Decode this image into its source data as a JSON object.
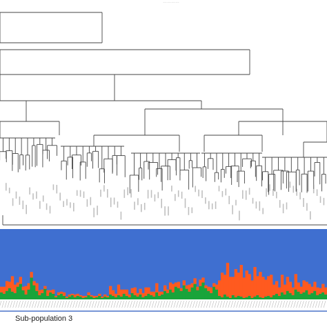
{
  "figure": {
    "top_title": "…………",
    "bottom_label": "Sub-population 3",
    "colors": {
      "background": "#ffffff",
      "tree_line": "#444444",
      "bar_background": "#3f6fd0",
      "series_orange": "#ff5a1f",
      "series_green": "#19a43a",
      "sample_labels": "#8a8a8a",
      "underline": "#4a72c9"
    }
  },
  "chart_data": {
    "type": "bar",
    "stacked": true,
    "ylim": [
      0,
      1
    ],
    "n_samples": 120,
    "series": [
      {
        "color": "#19a43a",
        "values": [
          0.1,
          0.08,
          0.12,
          0.16,
          0.11,
          0.09,
          0.18,
          0.22,
          0.13,
          0.07,
          0.14,
          0.31,
          0.2,
          0.12,
          0.06,
          0.09,
          0.15,
          0.05,
          0.1,
          0.08,
          0.03,
          0.06,
          0.08,
          0.05,
          0.02,
          0.04,
          0.06,
          0.03,
          0.05,
          0.04,
          0.02,
          0.03,
          0.06,
          0.04,
          0.02,
          0.03,
          0.05,
          0.02,
          0.04,
          0.03,
          0.07,
          0.05,
          0.03,
          0.06,
          0.04,
          0.08,
          0.05,
          0.03,
          0.09,
          0.06,
          0.04,
          0.07,
          0.03,
          0.05,
          0.08,
          0.06,
          0.04,
          0.1,
          0.05,
          0.07,
          0.12,
          0.09,
          0.14,
          0.1,
          0.18,
          0.16,
          0.12,
          0.2,
          0.15,
          0.11,
          0.17,
          0.22,
          0.13,
          0.19,
          0.24,
          0.16,
          0.12,
          0.09,
          0.18,
          0.14,
          0.05,
          0.03,
          0.07,
          0.04,
          0.02,
          0.06,
          0.03,
          0.05,
          0.04,
          0.02,
          0.03,
          0.05,
          0.02,
          0.04,
          0.06,
          0.03,
          0.02,
          0.04,
          0.05,
          0.03,
          0.06,
          0.08,
          0.05,
          0.1,
          0.07,
          0.12,
          0.09,
          0.06,
          0.14,
          0.11,
          0.08,
          0.1,
          0.13,
          0.07,
          0.09,
          0.12,
          0.06,
          0.08,
          0.1,
          0.07
        ]
      },
      {
        "color": "#ff5a1f",
        "values": [
          0.08,
          0.1,
          0.14,
          0.09,
          0.22,
          0.12,
          0.06,
          0.1,
          0.05,
          0.12,
          0.09,
          0.08,
          0.06,
          0.11,
          0.07,
          0.05,
          0.04,
          0.08,
          0.03,
          0.06,
          0.02,
          0.04,
          0.03,
          0.05,
          0.02,
          0.03,
          0.02,
          0.04,
          0.03,
          0.02,
          0.03,
          0.02,
          0.04,
          0.02,
          0.03,
          0.02,
          0.03,
          0.02,
          0.03,
          0.02,
          0.12,
          0.08,
          0.05,
          0.15,
          0.1,
          0.06,
          0.09,
          0.04,
          0.07,
          0.11,
          0.05,
          0.08,
          0.06,
          0.12,
          0.09,
          0.05,
          0.07,
          0.13,
          0.06,
          0.04,
          0.08,
          0.05,
          0.1,
          0.12,
          0.06,
          0.09,
          0.04,
          0.07,
          0.05,
          0.1,
          0.06,
          0.08,
          0.05,
          0.09,
          0.07,
          0.04,
          0.06,
          0.08,
          0.05,
          0.07,
          0.22,
          0.35,
          0.28,
          0.48,
          0.3,
          0.26,
          0.4,
          0.33,
          0.45,
          0.29,
          0.38,
          0.31,
          0.25,
          0.42,
          0.27,
          0.36,
          0.3,
          0.24,
          0.28,
          0.32,
          0.15,
          0.18,
          0.12,
          0.25,
          0.14,
          0.2,
          0.16,
          0.11,
          0.22,
          0.13,
          0.1,
          0.17,
          0.12,
          0.15,
          0.09,
          0.13,
          0.11,
          0.08,
          0.12,
          0.1
        ]
      }
    ]
  }
}
